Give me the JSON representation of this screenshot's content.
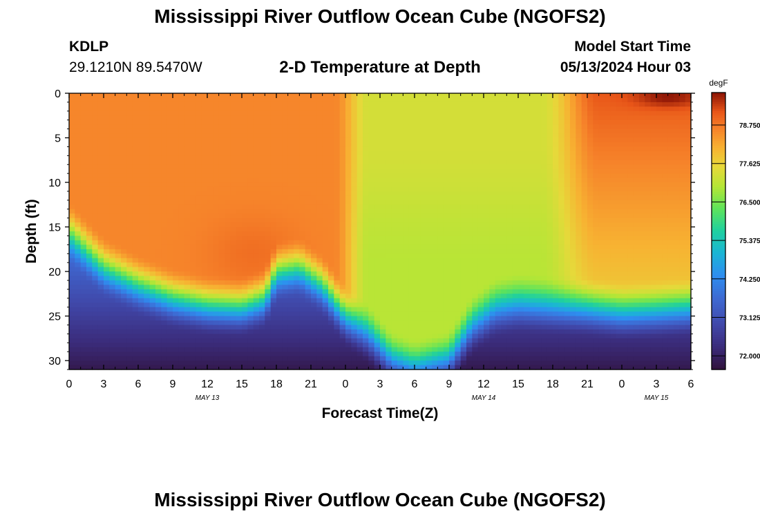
{
  "header": {
    "title": "Mississippi River Outflow Ocean Cube (NGOFS2)",
    "station": "KDLP",
    "coords": "29.1210N  89.5470W",
    "subtitle": "2-D Temperature at Depth",
    "model_start_label": "Model Start Time",
    "model_start_value": "05/13/2024 Hour 03"
  },
  "footer": {
    "title": "Mississippi River Outflow Ocean Cube (NGOFS2)"
  },
  "chart_data": {
    "type": "heatmap",
    "title": "2-D Temperature at Depth",
    "xlabel": "Forecast Time(Z)",
    "ylabel": "Depth (ft)",
    "x_range_hours": [
      0,
      54
    ],
    "y_range_ft": [
      0,
      31
    ],
    "x_ticks": [
      "0",
      "3",
      "6",
      "9",
      "12",
      "15",
      "18",
      "21",
      "0",
      "3",
      "6",
      "9",
      "12",
      "15",
      "18",
      "21",
      "0",
      "3",
      "6"
    ],
    "y_ticks": [
      0,
      5,
      10,
      15,
      20,
      25,
      30
    ],
    "date_labels": [
      {
        "label": "MAY 13",
        "hour": 12
      },
      {
        "label": "MAY 14",
        "hour": 36
      },
      {
        "label": "MAY 15",
        "hour": 51
      }
    ],
    "colorbar": {
      "units": "degF",
      "min": 71.6,
      "max": 79.7,
      "ticks": [
        "72.000",
        "73.125",
        "74.250",
        "75.375",
        "76.500",
        "77.625",
        "78.750"
      ],
      "tick_values": [
        72.0,
        73.125,
        74.25,
        75.375,
        76.5,
        77.625,
        78.75
      ]
    },
    "surface_temp_degF": 78.5,
    "max_temp_degF": 79.6,
    "min_temp_degF": 71.8,
    "thermocline_depth_ft": [
      {
        "hour": 0,
        "depth": 13.5
      },
      {
        "hour": 3,
        "depth": 17.5
      },
      {
        "hour": 6,
        "depth": 19.5
      },
      {
        "hour": 9,
        "depth": 21
      },
      {
        "hour": 12,
        "depth": 21.8
      },
      {
        "hour": 15,
        "depth": 22
      },
      {
        "hour": 17,
        "depth": 21
      },
      {
        "hour": 18,
        "depth": 18
      },
      {
        "hour": 20,
        "depth": 17.5
      },
      {
        "hour": 22,
        "depth": 19.5
      },
      {
        "hour": 24,
        "depth": 23
      },
      {
        "hour": 26,
        "depth": 25
      },
      {
        "hour": 28,
        "depth": 28
      },
      {
        "hour": 30,
        "depth": 29
      },
      {
        "hour": 33,
        "depth": 28
      },
      {
        "hour": 35,
        "depth": 24
      },
      {
        "hour": 37,
        "depth": 22
      },
      {
        "hour": 39,
        "depth": 21.5
      },
      {
        "hour": 42,
        "depth": 21.8
      },
      {
        "hour": 45,
        "depth": 22
      },
      {
        "hour": 48,
        "depth": 22.5
      },
      {
        "hour": 51,
        "depth": 22.3
      },
      {
        "hour": 54,
        "depth": 22
      }
    ]
  }
}
